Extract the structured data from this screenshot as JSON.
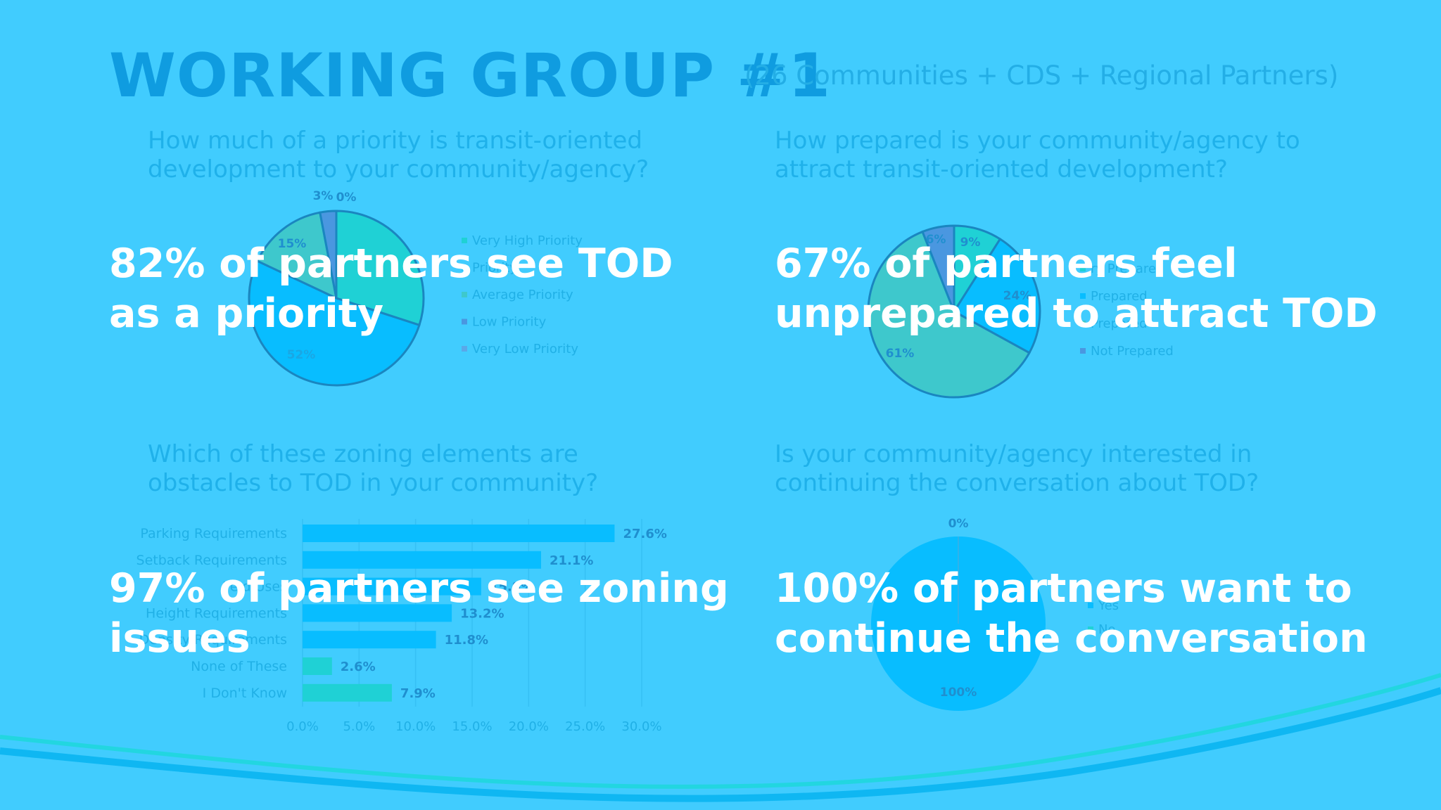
{
  "header": {
    "title": "WORKING GROUP #1",
    "subtitle": "(26 Communities + CDS + Regional Partners)"
  },
  "panels": [
    {
      "question": "How much of a priority is transit-oriented development to your community/agency?",
      "overlay_line1": "82% of partners see TOD",
      "overlay_line2": "as a priority"
    },
    {
      "question": "How prepared is your community/agency to attract transit-oriented development?",
      "overlay_line1": "67% of partners feel",
      "overlay_line2": "unprepared to attract TOD"
    },
    {
      "question": "Which of these zoning elements are obstacles to TOD in your community?",
      "overlay_line1": "97% of partners see zoning",
      "overlay_line2": "issues"
    },
    {
      "question": "Is your community/agency interested in continuing the conversation about TOD?",
      "overlay_line1": "100% of partners want to",
      "overlay_line2": "continue the conversation"
    }
  ],
  "colors": {
    "background": "#41ccfe",
    "title": "#0f9ce0",
    "teal": "#1fd1d5",
    "blue": "#08bdff",
    "green": "#3ec8cc",
    "purple": "#4a97e0",
    "outline": "#1a86c0"
  },
  "chart_data": [
    {
      "type": "pie",
      "labels": [
        "Very High Priority",
        "High Priority",
        "Average Priority",
        "Low Priority",
        "Very Low Priority"
      ],
      "legend_labels": [
        "Very High Priority",
        "Priority",
        "Average Priority",
        "Low Priority",
        "Very Low Priority"
      ],
      "values": [
        30,
        52,
        15,
        3,
        0
      ],
      "data_labels": [
        "",
        "52%",
        "15%",
        "3%",
        "0%"
      ],
      "colors": [
        "#1fd1d5",
        "#08bdff",
        "#3ec8cc",
        "#4a97e0",
        "#5aa8e8"
      ],
      "legend": "right"
    },
    {
      "type": "pie",
      "labels": [
        "Very Prepared",
        "Prepared",
        "Somewhat Prepared",
        "Not Prepared"
      ],
      "legend_labels": [
        "ry Prepared",
        "Prepared",
        "Prepared",
        "Not Prepared"
      ],
      "values": [
        9,
        24,
        61,
        6
      ],
      "data_labels": [
        "9%",
        "24%",
        "61%",
        "6%"
      ],
      "colors": [
        "#1fd1d5",
        "#08bdff",
        "#3ec8cc",
        "#4a97e0"
      ],
      "legend": "right"
    },
    {
      "type": "bar",
      "orientation": "horizontal",
      "categories": [
        "Parking Requirements",
        "Setback Requirements",
        "Permitted Uses",
        "Height Requirements",
        "Density Requirements",
        "None of These",
        "I Don't Know"
      ],
      "category_labels": [
        "Parking Requirements",
        "Setback Requirements",
        "Pe       d Uses",
        "Height Requirements",
        "Density Requirements",
        "None of These",
        "I Don't Know"
      ],
      "values": [
        27.6,
        21.1,
        15.8,
        13.2,
        11.8,
        2.6,
        7.9
      ],
      "data_labels": [
        "27.6%",
        "21.1%",
        "15.8%",
        "13.2%",
        "11.8%",
        "2.6%",
        "7.9%"
      ],
      "colors": [
        "#08bdff",
        "#08bdff",
        "#08bdff",
        "#08bdff",
        "#08bdff",
        "#1fd1d5",
        "#1fd1d5"
      ],
      "xlim": [
        0,
        30
      ],
      "xticks": [
        "0.0%",
        "5.0%",
        "10.0%",
        "15.0%",
        "20.0%",
        "25.0%",
        "30.0%"
      ],
      "grid": true
    },
    {
      "type": "pie",
      "labels": [
        "Yes",
        "No"
      ],
      "legend_labels": [
        "Yes",
        "No"
      ],
      "values": [
        100,
        0
      ],
      "data_labels": [
        "100%",
        "0%"
      ],
      "colors": [
        "#08bdff",
        "#1fd1d5"
      ],
      "legend": "right"
    }
  ]
}
